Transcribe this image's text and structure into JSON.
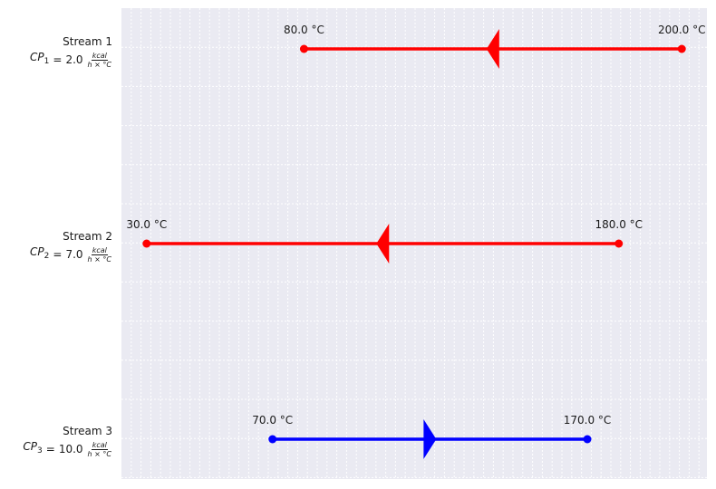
{
  "chart_data": {
    "type": "stream-diagram",
    "grid": true,
    "xlim": [
      22,
      208
    ],
    "streams": [
      {
        "name": "Stream 1",
        "cp_symbol": "CP",
        "cp_subscript": "1",
        "cp_value": "2.0",
        "cp_unit_num": "kcal",
        "cp_unit_den": "h × °C",
        "t_start": 200.0,
        "t_end": 80.0,
        "start_label": "200.0 °C",
        "end_label": "80.0 °C",
        "direction": "left",
        "color": "#ff0000"
      },
      {
        "name": "Stream 2",
        "cp_symbol": "CP",
        "cp_subscript": "2",
        "cp_value": "7.0",
        "cp_unit_num": "kcal",
        "cp_unit_den": "h × °C",
        "t_start": 180.0,
        "t_end": 30.0,
        "start_label": "180.0 °C",
        "end_label": "30.0 °C",
        "direction": "left",
        "color": "#ff0000"
      },
      {
        "name": "Stream 3",
        "cp_symbol": "CP",
        "cp_subscript": "3",
        "cp_value": "10.0",
        "cp_unit_num": "kcal",
        "cp_unit_den": "h × °C",
        "t_start": 70.0,
        "t_end": 170.0,
        "start_label": "70.0 °C",
        "end_label": "170.0 °C",
        "direction": "right",
        "color": "#0000ff"
      }
    ]
  }
}
